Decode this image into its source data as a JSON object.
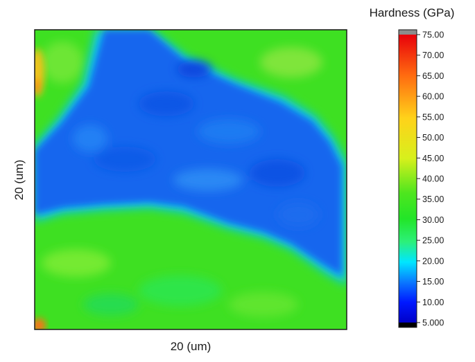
{
  "chart_data": {
    "type": "heatmap",
    "title": "",
    "xlabel": "20 (um)",
    "ylabel": "20 (um)",
    "colorbar": {
      "title": "Hardness (GPa)",
      "range": [
        5.0,
        75.0
      ],
      "ticks": [
        "75.00",
        "70.00",
        "65.00",
        "60.00",
        "55.00",
        "50.00",
        "45.00",
        "40.00",
        "35.00",
        "30.00",
        "25.00",
        "20.00",
        "15.00",
        "10.00",
        "5.000"
      ],
      "colormap": "jet",
      "overflow_color": "#8c8c8c",
      "underflow_color": "#000000"
    },
    "regions": [
      {
        "name": "top-left",
        "approx_hardness_gpa": 44
      },
      {
        "name": "central band",
        "approx_hardness_gpa": 14
      },
      {
        "name": "top-right",
        "approx_hardness_gpa": 44
      },
      {
        "name": "bottom",
        "approx_hardness_gpa": 45
      },
      {
        "name": "left edge hot spots",
        "approx_hardness_gpa": 60
      }
    ],
    "grid": false
  }
}
